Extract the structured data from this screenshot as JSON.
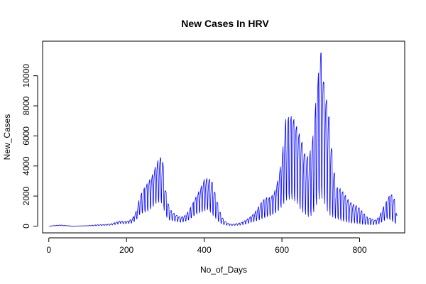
{
  "chart_data": {
    "type": "line",
    "title": "New Cases In HRV",
    "xlabel": "No_of_Days",
    "ylabel": "New_Cases",
    "xlim": [
      -16,
      916
    ],
    "ylim": [
      -450,
      12300
    ],
    "xticks": [
      0,
      200,
      400,
      600,
      800
    ],
    "yticks": [
      0,
      2000,
      4000,
      6000,
      8000,
      10000
    ],
    "grid": false,
    "legend": "none",
    "series": [
      {
        "color": "#0000ff",
        "weekly_oscillation": true,
        "x": [
          1,
          30,
          60,
          100,
          120,
          140,
          160,
          175,
          185,
          195,
          205,
          215,
          225,
          235,
          245,
          255,
          265,
          275,
          285,
          293,
          300,
          310,
          320,
          330,
          340,
          350,
          360,
          370,
          380,
          390,
          400,
          410,
          420,
          430,
          440,
          450,
          460,
          470,
          480,
          490,
          500,
          510,
          520,
          530,
          540,
          550,
          560,
          570,
          580,
          590,
          600,
          610,
          620,
          628,
          640,
          650,
          660,
          670,
          680,
          690,
          700,
          710,
          720,
          730,
          740,
          750,
          760,
          770,
          780,
          790,
          800,
          810,
          820,
          830,
          840,
          850,
          860,
          870,
          880,
          890,
          896
        ],
        "low": [
          0,
          30,
          0,
          10,
          20,
          40,
          60,
          120,
          180,
          150,
          180,
          200,
          400,
          800,
          900,
          1000,
          1200,
          1500,
          1600,
          1500,
          700,
          400,
          350,
          300,
          250,
          300,
          400,
          600,
          800,
          900,
          1000,
          1100,
          800,
          500,
          200,
          100,
          50,
          30,
          50,
          60,
          100,
          150,
          250,
          300,
          400,
          500,
          600,
          700,
          800,
          1000,
          1300,
          1700,
          1800,
          1800,
          1500,
          1000,
          800,
          600,
          800,
          1500,
          2000,
          1500,
          800,
          600,
          500,
          400,
          300,
          250,
          200,
          200,
          150,
          100,
          100,
          80,
          100,
          150,
          300,
          500,
          400,
          200,
          100
        ],
        "high": [
          0,
          80,
          0,
          30,
          80,
          100,
          150,
          280,
          350,
          300,
          350,
          500,
          1000,
          2000,
          2500,
          2900,
          3300,
          4000,
          4600,
          4500,
          2500,
          1200,
          900,
          700,
          600,
          700,
          1000,
          1500,
          2000,
          2500,
          3100,
          3200,
          3000,
          2000,
          1000,
          400,
          200,
          120,
          150,
          200,
          300,
          450,
          650,
          900,
          1300,
          1700,
          1900,
          1900,
          2200,
          3100,
          4500,
          7100,
          7300,
          7300,
          6500,
          5800,
          4700,
          4600,
          6000,
          9100,
          11800,
          9000,
          7800,
          4600,
          2600,
          2500,
          2200,
          1800,
          1500,
          1400,
          1200,
          900,
          600,
          500,
          400,
          600,
          1200,
          1700,
          2200,
          1800,
          700
        ]
      }
    ]
  }
}
